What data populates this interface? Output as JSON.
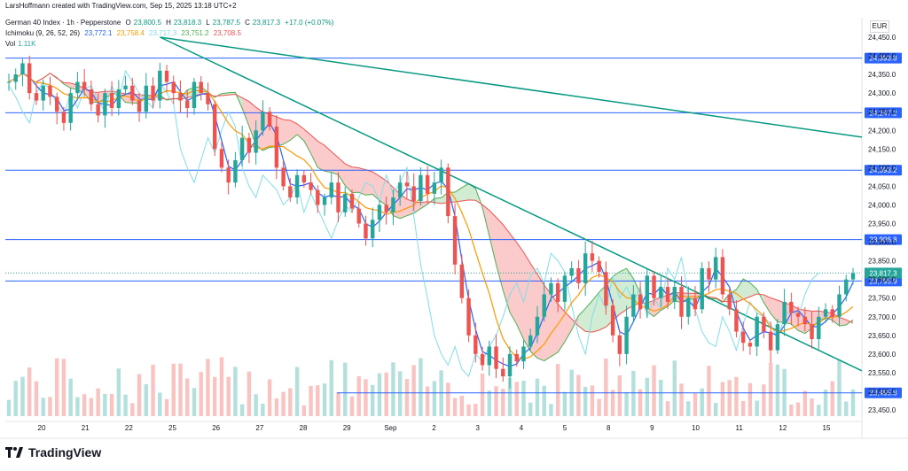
{
  "header": {
    "author_line": "LarsHoffmann created with TradingView.com, Sep 15, 2025 13:18 UTC+2",
    "symbol": "German 40 Index · 1h · Pepperstone",
    "ohlc": {
      "o_label": "O",
      "o": "23,800.5",
      "h_label": "H",
      "h": "23,818.3",
      "l_label": "L",
      "l": "23,787.5",
      "c_label": "C",
      "c": "23,817.3",
      "chg": "+17.0 (+0.07%)"
    },
    "ichimoku_label": "Ichimoku (9, 26, 52, 26)",
    "ichimoku_values": [
      "23,772.1",
      "23,758.4",
      "23,717.3",
      "23,751.2",
      "23,708.5"
    ],
    "vol_label": "Vol",
    "vol_value": "1.11K"
  },
  "currency": "EUR",
  "footer": {
    "brand": "TradingView"
  },
  "colors": {
    "up": "#26a69a",
    "down": "#ef5350",
    "tenkan": "#2962ff",
    "kijun": "#ff9800",
    "chikou": "#80deea",
    "spanA": "#4caf50",
    "spanB": "#ef5350",
    "hline": "#2962ff",
    "trend": "#089981",
    "label_bg": "#2962ff"
  },
  "chart_data": {
    "type": "candlestick",
    "y_axis": {
      "min": 23450,
      "max": 24450,
      "step": 50,
      "ticks": [
        "24,450.0",
        "24,400.0",
        "24,350.0",
        "24,300.0",
        "24,250.0",
        "24,200.0",
        "24,150.0",
        "24,100.0",
        "24,050.0",
        "24,000.0",
        "23,950.0",
        "23,900.0",
        "23,850.0",
        "23,800.0",
        "23,750.0",
        "23,700.0",
        "23,650.0",
        "23,600.0",
        "23,550.0",
        "23,500.0",
        "23,450.0"
      ]
    },
    "x_axis_labels": [
      "20",
      "21",
      "22",
      "25",
      "26",
      "27",
      "28",
      "29",
      "Sep",
      "2",
      "3",
      "4",
      "5",
      "8",
      "9",
      "10",
      "11",
      "12",
      "15"
    ],
    "horizontal_levels": [
      {
        "value": 24393.8,
        "label": "24,393.8"
      },
      {
        "value": 24247.2,
        "label": "24,247.2"
      },
      {
        "value": 24093.2,
        "label": "24,093.2"
      },
      {
        "value": 23906.8,
        "label": "23,906.8"
      },
      {
        "value": 23795.9,
        "label": "23,795.9"
      },
      {
        "value": 23495.8,
        "label": "23,495.8"
      }
    ],
    "last_price": {
      "value": 23817.3,
      "label": "23,817.3"
    },
    "trendlines": [
      {
        "from": {
          "x": "Aug 25",
          "y": 24450
        },
        "to": {
          "x": "Sep 15",
          "y": 24182
        }
      },
      {
        "from": {
          "x": "Aug 25",
          "y": 24450
        },
        "to": {
          "x": "Sep 15",
          "y": 23555
        }
      }
    ],
    "close_path": [
      24330,
      24350,
      24380,
      24300,
      24280,
      24320,
      24290,
      24250,
      24220,
      24300,
      24330,
      24310,
      24270,
      24240,
      24300,
      24260,
      24310,
      24320,
      24280,
      24250,
      24320,
      24280,
      24360,
      24330,
      24300,
      24280,
      24260,
      24330,
      24300,
      24270,
      24150,
      24100,
      24060,
      24120,
      24180,
      24140,
      24200,
      24250,
      24210,
      24100,
      24050,
      24020,
      24080,
      24060,
      24040,
      24000,
      24020,
      24060,
      23980,
      24030,
      23990,
      23950,
      23910,
      23960,
      24000,
      23980,
      24020,
      24060,
      24050,
      24010,
      24080,
      24030,
      24060,
      24100,
      23970,
      23840,
      23750,
      23650,
      23600,
      23570,
      23620,
      23560,
      23540,
      23600,
      23580,
      23620,
      23650,
      23700,
      23760,
      23790,
      23740,
      23810,
      23830,
      23790,
      23870,
      23850,
      23820,
      23730,
      23650,
      23600,
      23700,
      23760,
      23720,
      23810,
      23750,
      23780,
      23740,
      23780,
      23700,
      23750,
      23720,
      23830,
      23800,
      23860,
      23760,
      23720,
      23660,
      23630,
      23620,
      23700,
      23660,
      23610,
      23680,
      23740,
      23710,
      23700,
      23680,
      23640,
      23700,
      23720,
      23700,
      23760,
      23800,
      23817
    ]
  }
}
